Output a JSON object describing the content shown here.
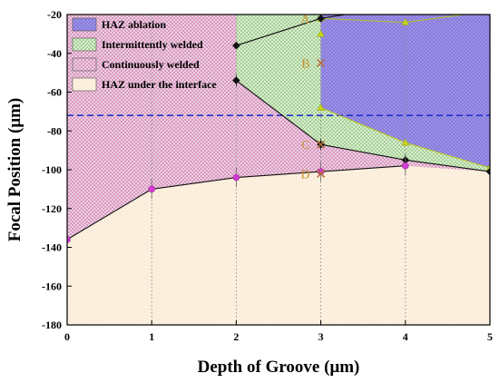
{
  "chart_data": {
    "type": "area",
    "xlabel": "Depth of Groove (μm)",
    "ylabel": "Focal Position (μm)",
    "xlim": [
      0,
      5
    ],
    "ylim": [
      -180,
      -20
    ],
    "xticks": [
      0,
      1,
      2,
      3,
      4,
      5
    ],
    "yticks": [
      -180,
      -160,
      -140,
      -120,
      -100,
      -80,
      -60,
      -40,
      -20
    ],
    "x_tick_labels": [
      "0",
      "1",
      "2",
      "3",
      "4",
      "5"
    ],
    "y_tick_labels": [
      "-180",
      "-160",
      "-140",
      "-120",
      "-100",
      "-80",
      "-60",
      "-40",
      "-20"
    ],
    "grid": "vertical dotted",
    "legend_position": "top-left",
    "legend": [
      {
        "name": "HAZ ablation",
        "color": "#8877dd"
      },
      {
        "name": "Intermittently welded",
        "color": "#66bb55"
      },
      {
        "name": "Continuously welded",
        "color": "#cc6699"
      },
      {
        "name": "HAZ under the interface",
        "color": "#f4dcb6"
      }
    ],
    "boundaries": {
      "upper_black": [
        [
          2,
          -36
        ],
        [
          3,
          -22
        ],
        [
          4,
          -15
        ]
      ],
      "lower_black": [
        [
          2,
          -54
        ],
        [
          3,
          -87
        ],
        [
          4,
          -95
        ],
        [
          5,
          -101
        ]
      ],
      "yellow": [
        [
          3,
          -22
        ],
        [
          4,
          -24
        ],
        [
          4.7,
          -20
        ]
      ],
      "yellow_lower": [
        [
          3,
          -68
        ],
        [
          4,
          -86
        ],
        [
          5,
          -99
        ]
      ],
      "magenta": [
        [
          0,
          -136
        ],
        [
          1,
          -110
        ],
        [
          2,
          -104
        ],
        [
          3,
          -101
        ],
        [
          4,
          -98
        ]
      ]
    },
    "reference_line": {
      "y": -72,
      "color": "#2233cc",
      "style": "dashed"
    },
    "points": [
      {
        "label": "A",
        "x": 3,
        "y": -22
      },
      {
        "label": "B",
        "x": 3,
        "y": -45
      },
      {
        "label": "C",
        "x": 3,
        "y": -87
      },
      {
        "label": "D",
        "x": 3,
        "y": -102
      }
    ]
  }
}
